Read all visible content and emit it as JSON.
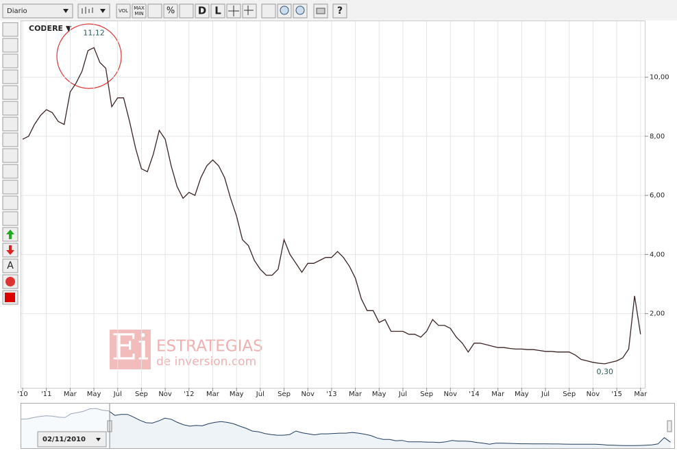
{
  "toolbar": {
    "period": "Diario",
    "vol": "VOL",
    "max": "MAX",
    "min": "MIN",
    "percent": "%",
    "d": "D",
    "l": "L",
    "help": "?",
    "text_tool": "A"
  },
  "navigator": {
    "date": "02/11/2010"
  },
  "watermark": {
    "logo": "Ei",
    "line1": "ESTRATEGIAS",
    "line2": "de inversion.com"
  },
  "chart_data": {
    "type": "line",
    "title": "CODERE ▼",
    "annotations": [
      {
        "text": "11,12",
        "value": 11.12
      },
      {
        "text": "0,30",
        "value": 0.3
      }
    ],
    "x": [
      0,
      0.5,
      1,
      1.5,
      2,
      2.5,
      3,
      3.5,
      4,
      4.5,
      5,
      5.5,
      6,
      6.5,
      7,
      7.5,
      8,
      8.5,
      9,
      9.5,
      10,
      10.5,
      11,
      11.5,
      12,
      12.5,
      13,
      13.5,
      14,
      14.5,
      15,
      15.5,
      16,
      16.5,
      17,
      17.5,
      18,
      18.5,
      19,
      19.5,
      20,
      20.5,
      21,
      21.5,
      22,
      22.5,
      23,
      23.5,
      24,
      24.5,
      25,
      25.5,
      26,
      26.5,
      27,
      27.5,
      28,
      28.5,
      29,
      29.5,
      30,
      30.5,
      31,
      31.5,
      32,
      32.5,
      33,
      33.5,
      34,
      34.5,
      35,
      35.5,
      36,
      36.5,
      37,
      37.5,
      38,
      38.5,
      39,
      39.5,
      40,
      40.5,
      41,
      41.5,
      42,
      42.5,
      43,
      43.5,
      44,
      44.5,
      45,
      45.5,
      46,
      46.5,
      47,
      47.5,
      48,
      48.5,
      49,
      49.5,
      50,
      50.5,
      51,
      51.5,
      52
    ],
    "series": [
      {
        "name": "CODERE",
        "color": "#3a2222",
        "values": [
          7.9,
          8.0,
          8.4,
          8.7,
          8.9,
          8.8,
          8.5,
          8.4,
          9.5,
          9.8,
          10.2,
          10.9,
          11.0,
          10.5,
          10.3,
          9.0,
          9.3,
          9.3,
          8.5,
          7.6,
          6.9,
          6.8,
          7.4,
          8.2,
          7.9,
          7.0,
          6.3,
          5.9,
          6.1,
          6.0,
          6.6,
          7.0,
          7.2,
          7.0,
          6.6,
          5.9,
          5.3,
          4.5,
          4.3,
          3.8,
          3.5,
          3.3,
          3.3,
          3.5,
          4.5,
          4.0,
          3.7,
          3.4,
          3.7,
          3.7,
          3.8,
          3.9,
          3.9,
          4.1,
          3.9,
          3.6,
          3.2,
          2.5,
          2.1,
          2.1,
          1.7,
          1.8,
          1.4,
          1.4,
          1.4,
          1.3,
          1.3,
          1.2,
          1.4,
          1.8,
          1.6,
          1.6,
          1.5,
          1.2,
          1.0,
          0.7,
          1.0,
          1.0,
          0.95,
          0.9,
          0.85,
          0.85,
          0.82,
          0.8,
          0.8,
          0.78,
          0.78,
          0.75,
          0.72,
          0.72,
          0.7,
          0.7,
          0.7,
          0.6,
          0.45,
          0.4,
          0.35,
          0.32,
          0.3,
          0.35,
          0.4,
          0.5,
          0.8,
          2.6,
          1.3
        ]
      }
    ],
    "xlim": [
      0,
      52.3
    ],
    "xticks": [
      {
        "value": 0,
        "label": "'10"
      },
      {
        "value": 2,
        "label": "'11"
      },
      {
        "value": 4,
        "label": "Mar"
      },
      {
        "value": 6,
        "label": "May"
      },
      {
        "value": 8,
        "label": "Jul"
      },
      {
        "value": 10,
        "label": "Sep"
      },
      {
        "value": 12,
        "label": "Nov"
      },
      {
        "value": 14,
        "label": "'12"
      },
      {
        "value": 16,
        "label": "Mar"
      },
      {
        "value": 18,
        "label": "May"
      },
      {
        "value": 20,
        "label": "Jul"
      },
      {
        "value": 22,
        "label": "Sep"
      },
      {
        "value": 24,
        "label": "Nov"
      },
      {
        "value": 26,
        "label": "'13"
      },
      {
        "value": 28,
        "label": "Mar"
      },
      {
        "value": 30,
        "label": "May"
      },
      {
        "value": 32,
        "label": "Jul"
      },
      {
        "value": 34,
        "label": "Sep"
      },
      {
        "value": 36,
        "label": "Nov"
      },
      {
        "value": 38,
        "label": "'14"
      },
      {
        "value": 40,
        "label": "Mar"
      },
      {
        "value": 42,
        "label": "May"
      },
      {
        "value": 44,
        "label": "Jul"
      },
      {
        "value": 46,
        "label": "Sep"
      },
      {
        "value": 48,
        "label": "Nov"
      },
      {
        "value": 50,
        "label": "'15"
      },
      {
        "value": 52,
        "label": "Mar"
      }
    ],
    "ylim": [
      -0.42,
      11.8
    ],
    "yticks": [
      {
        "value": 2,
        "label": "2,00"
      },
      {
        "value": 4,
        "label": "4,00"
      },
      {
        "value": 6,
        "label": "6,00"
      },
      {
        "value": 8,
        "label": "8,00"
      },
      {
        "value": 10,
        "label": "10,00"
      }
    ],
    "grid": true
  }
}
